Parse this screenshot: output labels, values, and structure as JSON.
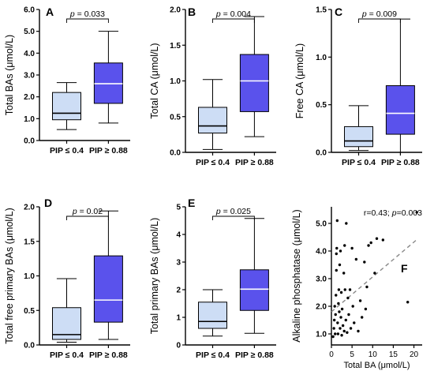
{
  "chart_data": [
    {
      "panel": "A",
      "type": "box",
      "ylabel": "Total BAs (μmol/L)",
      "ylim": [
        0,
        6
      ],
      "yticks": [
        "0.0",
        "1.0",
        "2.0",
        "3.0",
        "4.0",
        "5.0",
        "6.0"
      ],
      "ytick_values": [
        0,
        1,
        2,
        3,
        4,
        5,
        6
      ],
      "categories": [
        "PIP ≤ 0.4",
        "PIP ≥ 0.88"
      ],
      "boxes": [
        {
          "min": 0.5,
          "q1": 0.95,
          "median": 1.25,
          "q3": 2.2,
          "max": 2.65
        },
        {
          "min": 0.8,
          "q1": 1.7,
          "median": 2.6,
          "q3": 3.55,
          "max": 5.0
        }
      ],
      "annotation": "p = 0.033"
    },
    {
      "panel": "B",
      "type": "box",
      "ylabel": "Total CA (μmol/L)",
      "ylim": [
        0,
        2.0
      ],
      "yticks": [
        "0.0",
        "0.5",
        "1.0",
        "1.5",
        "2.0"
      ],
      "ytick_values": [
        0,
        0.5,
        1.0,
        1.5,
        2.0
      ],
      "categories": [
        "PIP ≤ 0.4",
        "PIP ≥ 0.88"
      ],
      "boxes": [
        {
          "min": 0.04,
          "q1": 0.27,
          "median": 0.37,
          "q3": 0.63,
          "max": 1.02
        },
        {
          "min": 0.22,
          "q1": 0.57,
          "median": 1.0,
          "q3": 1.37,
          "max": 1.9
        }
      ],
      "annotation": "p = 0.004"
    },
    {
      "panel": "C",
      "type": "box",
      "ylabel": "Free CA (μmol/L)",
      "ylim": [
        0,
        1.5
      ],
      "yticks": [
        "0.0",
        "0.5",
        "1.0",
        "1.5"
      ],
      "ytick_values": [
        0,
        0.5,
        1.0,
        1.5
      ],
      "categories": [
        "PIP ≤ 0.4",
        "PIP ≥ 0.88"
      ],
      "boxes": [
        {
          "min": 0.02,
          "q1": 0.06,
          "median": 0.12,
          "q3": 0.27,
          "max": 0.49
        },
        {
          "min": 0.0,
          "q1": 0.19,
          "median": 0.41,
          "q3": 0.7,
          "max": 1.4
        }
      ],
      "annotation": "p = 0.009"
    },
    {
      "panel": "D",
      "type": "box",
      "ylabel": "Total free primary BAs (μmol/L)",
      "ylim": [
        0,
        2.0
      ],
      "yticks": [
        "0.0",
        "0.5",
        "1.0",
        "1.5",
        "2.0"
      ],
      "ytick_values": [
        0,
        0.5,
        1.0,
        1.5,
        2.0
      ],
      "categories": [
        "PIP ≤ 0.4",
        "PIP ≥ 0.88"
      ],
      "boxes": [
        {
          "min": 0.04,
          "q1": 0.08,
          "median": 0.15,
          "q3": 0.54,
          "max": 0.96
        },
        {
          "min": 0.08,
          "q1": 0.33,
          "median": 0.65,
          "q3": 1.29,
          "max": 1.94
        }
      ],
      "annotation": "p = 0.02"
    },
    {
      "panel": "E",
      "type": "box",
      "ylabel": "Total primary BAs (μmol/L)",
      "ylim": [
        0,
        5
      ],
      "yticks": [
        "0",
        "1",
        "2",
        "3",
        "4",
        "5"
      ],
      "ytick_values": [
        0,
        1,
        2,
        3,
        4,
        5
      ],
      "categories": [
        "PIP ≤ 0.4",
        "PIP ≥ 0.88"
      ],
      "boxes": [
        {
          "min": 0.32,
          "q1": 0.6,
          "median": 0.85,
          "q3": 1.55,
          "max": 2.0
        },
        {
          "min": 0.42,
          "q1": 1.25,
          "median": 2.02,
          "q3": 2.72,
          "max": 4.58
        }
      ],
      "annotation": "p = 0.025"
    },
    {
      "panel": "F",
      "type": "scatter",
      "xlabel": "Total BA (μmol/L)",
      "ylabel": "Alkaline phosphatase (μmol/L)",
      "xlim": [
        0,
        22
      ],
      "ylim": [
        0.6,
        5.6
      ],
      "xticks": [
        "0",
        "5",
        "10",
        "15",
        "20"
      ],
      "xtick_values": [
        0,
        5,
        10,
        15,
        20
      ],
      "yticks": [
        "1.0",
        "2.0",
        "3.0",
        "4.0",
        "5.0"
      ],
      "ytick_values": [
        1,
        2,
        3,
        4,
        5
      ],
      "annotation": "r=0.43; p=0.003",
      "trendline": {
        "style": "dashed",
        "x": [
          0,
          21
        ],
        "y": [
          1.8,
          4.45
        ]
      },
      "points": [
        [
          0.4,
          0.9
        ],
        [
          0.6,
          1.2
        ],
        [
          0.7,
          1.5
        ],
        [
          0.8,
          2.0
        ],
        [
          0.9,
          1.0
        ],
        [
          1.0,
          1.7
        ],
        [
          1.1,
          2.4
        ],
        [
          1.2,
          3.3
        ],
        [
          1.2,
          3.9
        ],
        [
          1.3,
          4.1
        ],
        [
          1.4,
          5.1
        ],
        [
          1.5,
          1.4
        ],
        [
          1.6,
          1.0
        ],
        [
          1.7,
          2.1
        ],
        [
          1.8,
          2.6
        ],
        [
          1.9,
          1.8
        ],
        [
          2.0,
          3.5
        ],
        [
          2.1,
          1.2
        ],
        [
          2.2,
          4.0
        ],
        [
          2.3,
          1.6
        ],
        [
          2.4,
          2.5
        ],
        [
          2.5,
          0.95
        ],
        [
          2.6,
          1.9
        ],
        [
          2.8,
          1.3
        ],
        [
          3.0,
          3.2
        ],
        [
          3.1,
          1.1
        ],
        [
          3.2,
          4.2
        ],
        [
          3.3,
          2.6
        ],
        [
          3.5,
          1.5
        ],
        [
          3.6,
          5.0
        ],
        [
          3.8,
          1.05
        ],
        [
          4.0,
          2.3
        ],
        [
          4.2,
          1.7
        ],
        [
          4.5,
          2.6
        ],
        [
          4.7,
          1.2
        ],
        [
          5.0,
          4.1
        ],
        [
          5.2,
          2.0
        ],
        [
          5.5,
          1.4
        ],
        [
          6.0,
          3.7
        ],
        [
          6.5,
          1.1
        ],
        [
          7.0,
          2.2
        ],
        [
          7.4,
          1.6
        ],
        [
          8.0,
          3.6
        ],
        [
          8.3,
          1.9
        ],
        [
          8.6,
          2.7
        ],
        [
          9.0,
          4.2
        ],
        [
          9.6,
          4.3
        ],
        [
          10.5,
          3.2
        ],
        [
          11.0,
          4.45
        ],
        [
          12.5,
          4.4
        ],
        [
          18.5,
          2.15
        ],
        [
          20.7,
          5.4
        ]
      ]
    }
  ]
}
